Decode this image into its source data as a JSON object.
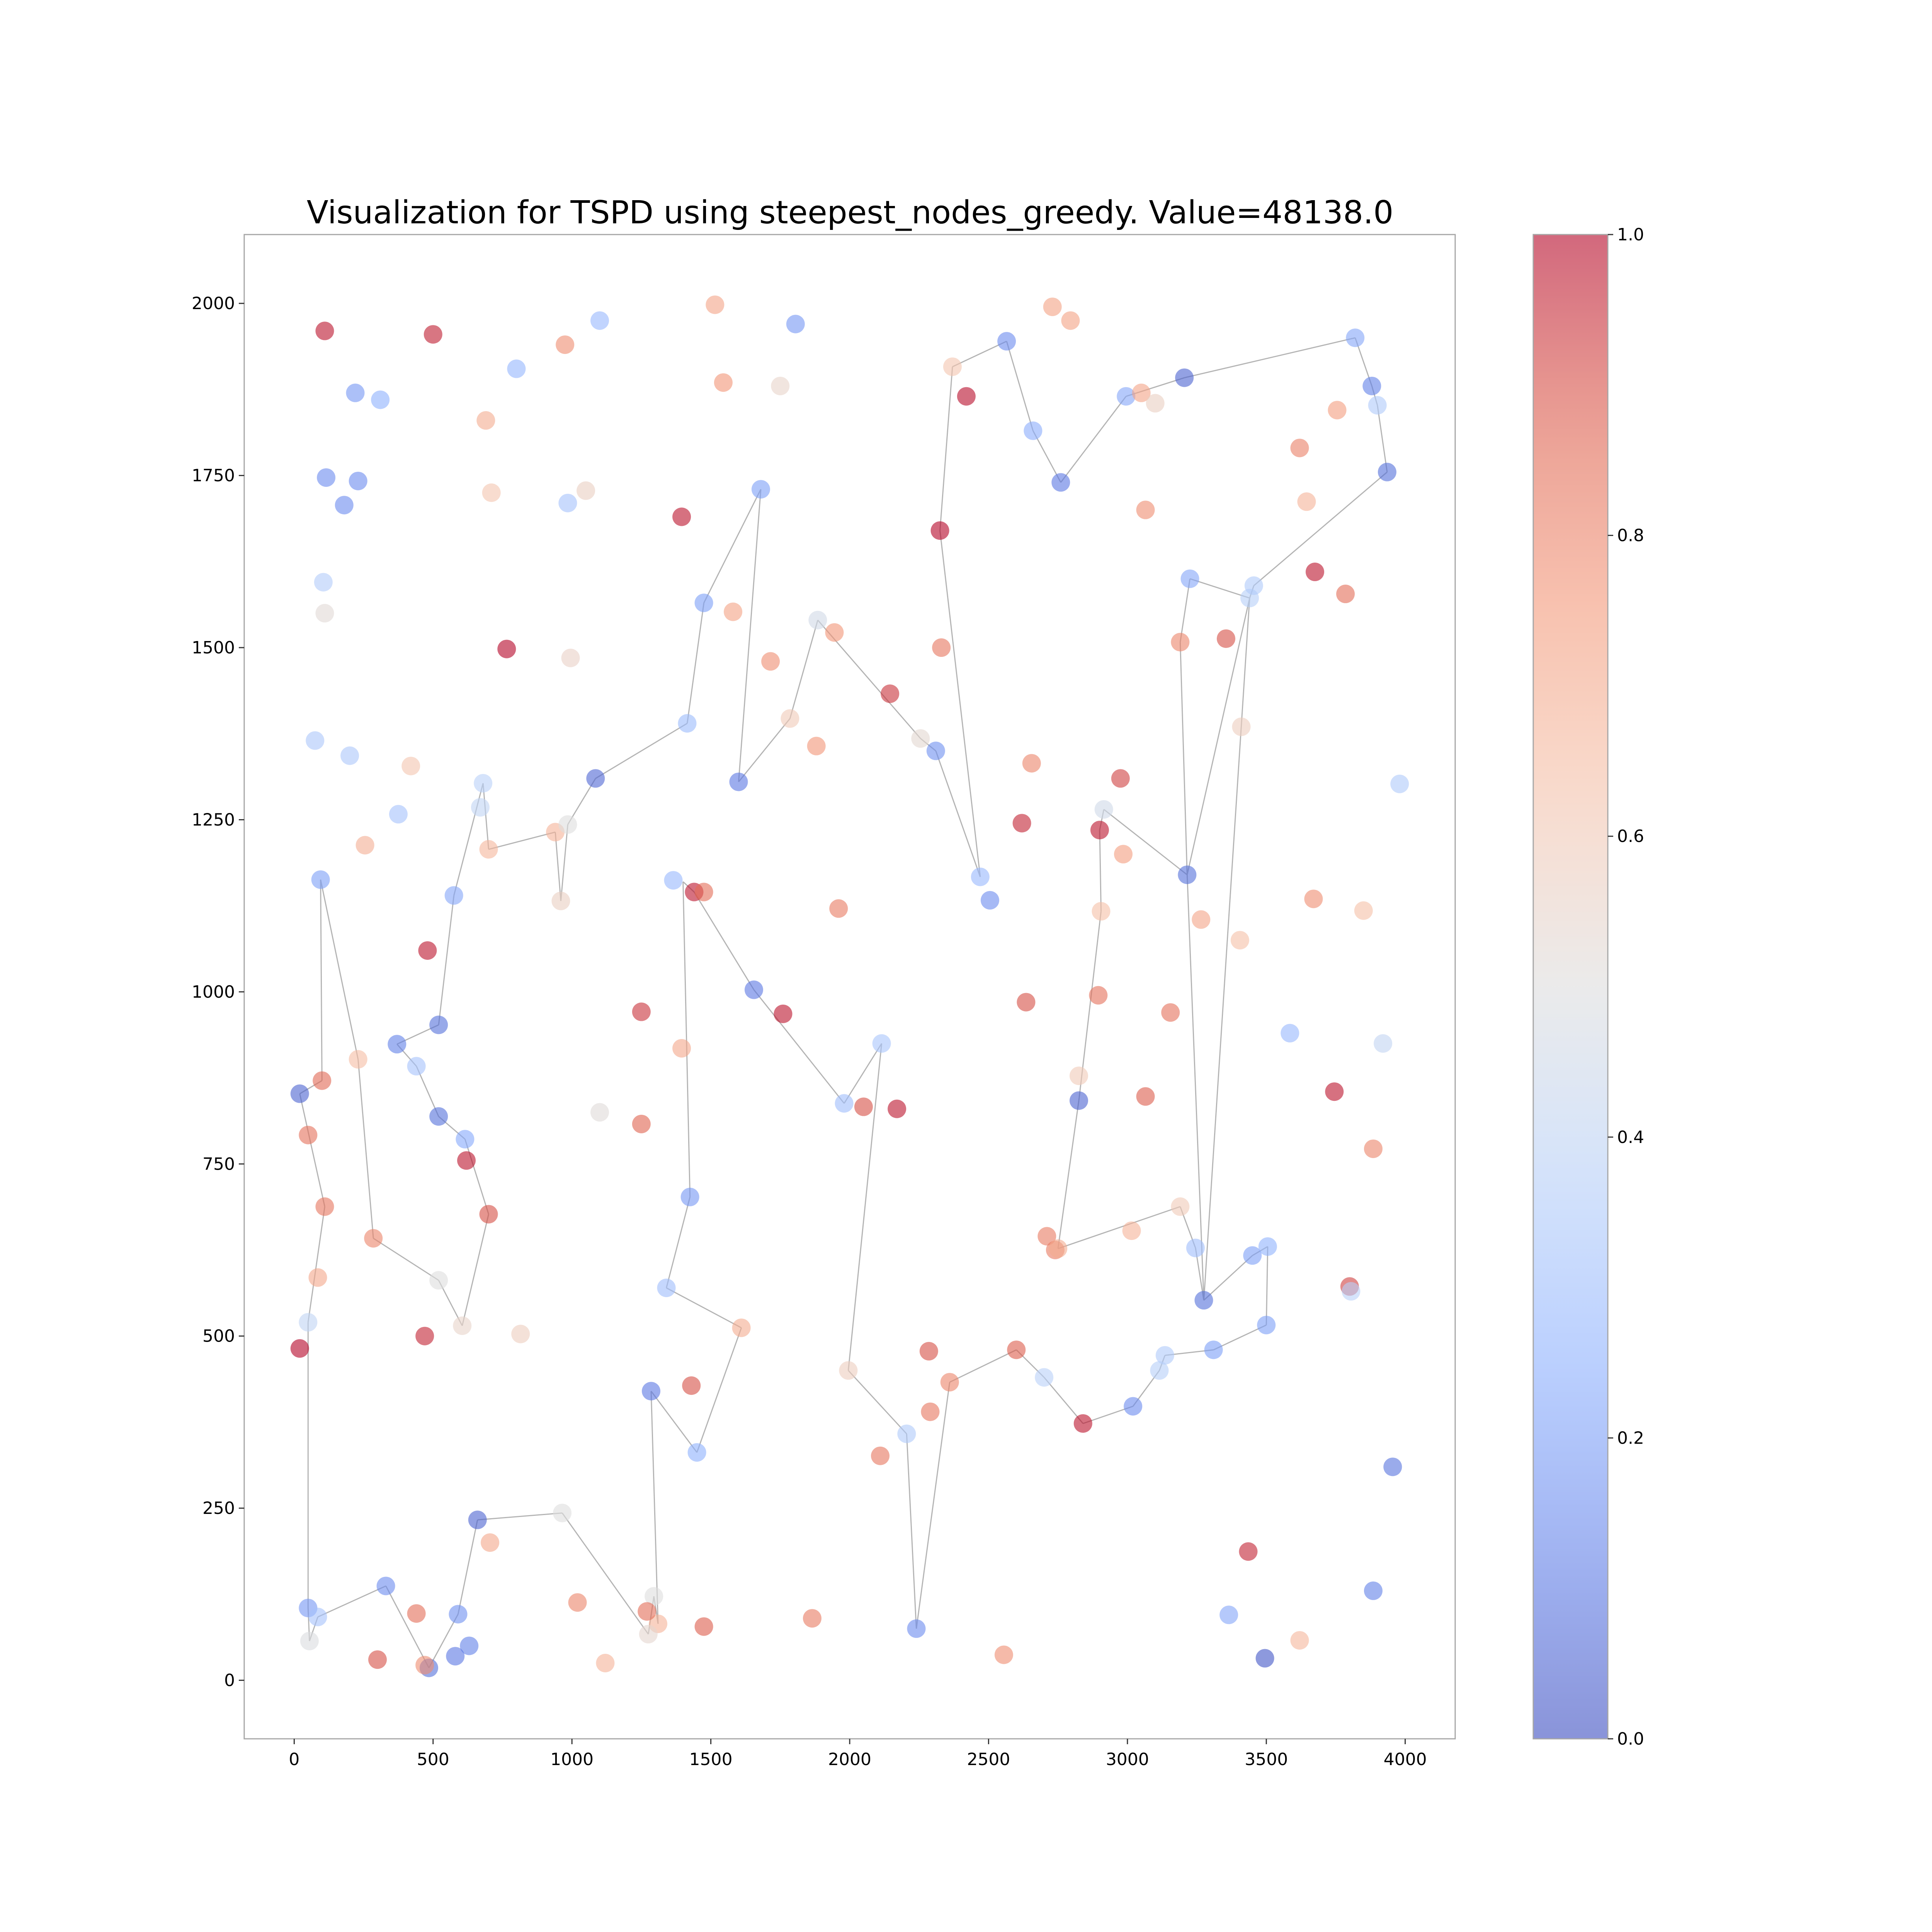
{
  "chart_data": {
    "type": "scatter",
    "title": "Visualization for TSPD using steepest_nodes_greedy. Value=48138.0",
    "xlabel": "",
    "ylabel": "",
    "xlim": [
      -180,
      4180
    ],
    "ylim": [
      -85,
      2100
    ],
    "xticks": [
      0,
      500,
      1000,
      1500,
      2000,
      2500,
      3000,
      3500,
      4000
    ],
    "yticks": [
      0,
      250,
      500,
      750,
      1000,
      1250,
      1500,
      1750,
      2000
    ],
    "grid": false,
    "colormap": "coolwarm",
    "colorbar": {
      "range": [
        0.0,
        1.0
      ],
      "ticks": [
        0.0,
        0.2,
        0.4,
        0.6,
        0.8,
        1.0
      ],
      "tick_labels": [
        "0.0",
        "0.2",
        "0.4",
        "0.6",
        "0.8",
        "1.0"
      ]
    },
    "colors": {
      "edge": "#b4b4b4",
      "axes": "#a6a6a6"
    },
    "nodes": [
      [
        110,
        1960,
        0.98
      ],
      [
        500,
        1955,
        0.97
      ],
      [
        1515,
        1998,
        0.72
      ],
      [
        1100,
        1975,
        0.28
      ],
      [
        1805,
        1970,
        0.18
      ],
      [
        975,
        1940,
        0.78
      ],
      [
        800,
        1905,
        0.27
      ],
      [
        690,
        1830,
        0.7
      ],
      [
        220,
        1870,
        0.18
      ],
      [
        310,
        1860,
        0.25
      ],
      [
        1545,
        1885,
        0.76
      ],
      [
        1750,
        1880,
        0.55
      ],
      [
        115,
        1747,
        0.15
      ],
      [
        230,
        1742,
        0.15
      ],
      [
        180,
        1707,
        0.15
      ],
      [
        710,
        1725,
        0.62
      ],
      [
        985,
        1710,
        0.32
      ],
      [
        1050,
        1728,
        0.57
      ],
      [
        1395,
        1690,
        0.98
      ],
      [
        105,
        1595,
        0.36
      ],
      [
        110,
        1550,
        0.52
      ],
      [
        765,
        1498,
        1.0
      ],
      [
        995,
        1485,
        0.56
      ],
      [
        1580,
        1552,
        0.73
      ],
      [
        1715,
        1480,
        0.78
      ],
      [
        75,
        1365,
        0.34
      ],
      [
        200,
        1343,
        0.34
      ],
      [
        420,
        1328,
        0.62
      ],
      [
        375,
        1258,
        0.32
      ],
      [
        255,
        1213,
        0.69
      ],
      [
        680,
        1303,
        0.38
      ],
      [
        670,
        1268,
        0.4
      ],
      [
        700,
        1207,
        0.67
      ],
      [
        940,
        1232,
        0.68
      ],
      [
        985,
        1243,
        0.5
      ],
      [
        960,
        1132,
        0.57
      ],
      [
        95,
        1163,
        0.2
      ],
      [
        1880,
        1357,
        0.76
      ],
      [
        1785,
        1397,
        0.6
      ],
      [
        1885,
        1540,
        0.46
      ],
      [
        1945,
        1522,
        0.76
      ],
      [
        1960,
        1121,
        0.82
      ],
      [
        480,
        1060,
        0.98
      ],
      [
        575,
        1140,
        0.22
      ],
      [
        370,
        924,
        0.12
      ],
      [
        520,
        952,
        0.08
      ],
      [
        440,
        892,
        0.32
      ],
      [
        520,
        819,
        0.08
      ],
      [
        1250,
        971,
        0.94
      ],
      [
        1100,
        825,
        0.51
      ],
      [
        1250,
        808,
        0.87
      ],
      [
        1395,
        918,
        0.71
      ],
      [
        230,
        902,
        0.65
      ],
      [
        20,
        852,
        0.05
      ],
      [
        100,
        871,
        0.86
      ],
      [
        50,
        792,
        0.84
      ],
      [
        110,
        688,
        0.83
      ],
      [
        85,
        585,
        0.71
      ],
      [
        285,
        642,
        0.8
      ],
      [
        615,
        786,
        0.23
      ],
      [
        620,
        755,
        0.98
      ],
      [
        700,
        677,
        0.9
      ],
      [
        520,
        581,
        0.5
      ],
      [
        605,
        515,
        0.55
      ],
      [
        815,
        503,
        0.58
      ],
      [
        470,
        500,
        0.96
      ],
      [
        50,
        520,
        0.4
      ],
      [
        20,
        482,
        1.0
      ],
      [
        1365,
        1162,
        0.28
      ],
      [
        1440,
        1145,
        0.98
      ],
      [
        1475,
        1145,
        0.85
      ],
      [
        1655,
        1003,
        0.1
      ],
      [
        1760,
        968,
        0.98
      ],
      [
        1425,
        702,
        0.18
      ],
      [
        1340,
        570,
        0.3
      ],
      [
        1610,
        512,
        0.7
      ],
      [
        1285,
        420,
        0.1
      ],
      [
        1430,
        428,
        0.9
      ],
      [
        1450,
        331,
        0.25
      ],
      [
        1980,
        838,
        0.3
      ],
      [
        2050,
        833,
        0.9
      ],
      [
        2115,
        925,
        0.33
      ],
      [
        2170,
        830,
        0.98
      ],
      [
        1415,
        1390,
        0.29
      ],
      [
        1600,
        1305,
        0.1
      ],
      [
        1680,
        1730,
        0.2
      ],
      [
        1475,
        1565,
        0.2
      ],
      [
        1085,
        1310,
        0.06
      ],
      [
        2145,
        1433,
        0.94
      ],
      [
        2255,
        1368,
        0.53
      ],
      [
        2310,
        1350,
        0.16
      ],
      [
        2325,
        1670,
        1.0
      ],
      [
        2420,
        1865,
        0.99
      ],
      [
        2370,
        1908,
        0.62
      ],
      [
        2565,
        1945,
        0.15
      ],
      [
        2330,
        1500,
        0.83
      ],
      [
        2470,
        1167,
        0.28
      ],
      [
        2505,
        1133,
        0.15
      ],
      [
        2655,
        1332,
        0.8
      ],
      [
        2620,
        1245,
        0.96
      ],
      [
        2635,
        985,
        0.9
      ],
      [
        2660,
        1815,
        0.24
      ],
      [
        2760,
        1740,
        0.1
      ],
      [
        2730,
        1995,
        0.73
      ],
      [
        2795,
        1975,
        0.73
      ],
      [
        2995,
        1865,
        0.22
      ],
      [
        3050,
        1870,
        0.72
      ],
      [
        3100,
        1855,
        0.57
      ],
      [
        3205,
        1892,
        0.05
      ],
      [
        3065,
        1700,
        0.78
      ],
      [
        3225,
        1600,
        0.22
      ],
      [
        3440,
        1572,
        0.37
      ],
      [
        3455,
        1590,
        0.35
      ],
      [
        3190,
        1508,
        0.8
      ],
      [
        3355,
        1513,
        0.9
      ],
      [
        3410,
        1385,
        0.58
      ],
      [
        2975,
        1310,
        0.92
      ],
      [
        2900,
        1235,
        0.98
      ],
      [
        2915,
        1265,
        0.45
      ],
      [
        2985,
        1200,
        0.74
      ],
      [
        3215,
        1170,
        0.08
      ],
      [
        3265,
        1105,
        0.72
      ],
      [
        2905,
        1117,
        0.64
      ],
      [
        3405,
        1075,
        0.64
      ],
      [
        3155,
        970,
        0.84
      ],
      [
        2895,
        995,
        0.84
      ],
      [
        2825,
        878,
        0.6
      ],
      [
        2825,
        842,
        0.05
      ],
      [
        3065,
        848,
        0.88
      ],
      [
        3585,
        940,
        0.28
      ],
      [
        3920,
        925,
        0.41
      ],
      [
        3745,
        855,
        0.98
      ],
      [
        3885,
        772,
        0.8
      ],
      [
        3670,
        1135,
        0.78
      ],
      [
        3850,
        1118,
        0.64
      ],
      [
        3980,
        1302,
        0.35
      ],
      [
        3620,
        1790,
        0.81
      ],
      [
        3645,
        1712,
        0.68
      ],
      [
        3755,
        1845,
        0.74
      ],
      [
        3820,
        1950,
        0.22
      ],
      [
        3880,
        1880,
        0.12
      ],
      [
        3900,
        1852,
        0.35
      ],
      [
        3935,
        1755,
        0.08
      ],
      [
        3675,
        1610,
        0.98
      ],
      [
        3785,
        1578,
        0.85
      ],
      [
        3190,
        688,
        0.6
      ],
      [
        3245,
        628,
        0.3
      ],
      [
        3275,
        552,
        0.08
      ],
      [
        3450,
        617,
        0.2
      ],
      [
        3505,
        630,
        0.26
      ],
      [
        3500,
        516,
        0.2
      ],
      [
        3800,
        572,
        0.92
      ],
      [
        3805,
        565,
        0.38
      ],
      [
        3955,
        310,
        0.09
      ],
      [
        3310,
        480,
        0.2
      ],
      [
        3135,
        472,
        0.35
      ],
      [
        3115,
        450,
        0.37
      ],
      [
        3020,
        398,
        0.15
      ],
      [
        2710,
        645,
        0.82
      ],
      [
        2740,
        625,
        0.82
      ],
      [
        2750,
        627,
        0.7
      ],
      [
        3015,
        653,
        0.68
      ],
      [
        2840,
        373,
        0.98
      ],
      [
        2700,
        440,
        0.38
      ],
      [
        2600,
        480,
        0.88
      ],
      [
        2285,
        478,
        0.9
      ],
      [
        2360,
        433,
        0.8
      ],
      [
        2290,
        390,
        0.83
      ],
      [
        2110,
        326,
        0.83
      ],
      [
        1995,
        450,
        0.58
      ],
      [
        2205,
        358,
        0.35
      ],
      [
        2240,
        75,
        0.15
      ],
      [
        2555,
        37,
        0.78
      ],
      [
        3435,
        187,
        0.96
      ],
      [
        3365,
        95,
        0.22
      ],
      [
        3495,
        32,
        0.02
      ],
      [
        3620,
        58,
        0.67
      ],
      [
        3885,
        130,
        0.12
      ],
      [
        1865,
        90,
        0.82
      ],
      [
        1475,
        78,
        0.88
      ],
      [
        1295,
        122,
        0.5
      ],
      [
        1310,
        82,
        0.68
      ],
      [
        1270,
        100,
        0.85
      ],
      [
        1275,
        67,
        0.54
      ],
      [
        1120,
        25,
        0.68
      ],
      [
        1020,
        113,
        0.8
      ],
      [
        965,
        243,
        0.5
      ],
      [
        705,
        200,
        0.71
      ],
      [
        660,
        233,
        0.05
      ],
      [
        590,
        96,
        0.16
      ],
      [
        630,
        50,
        0.12
      ],
      [
        580,
        35,
        0.1
      ],
      [
        485,
        18,
        0.08
      ],
      [
        470,
        22,
        0.78
      ],
      [
        440,
        97,
        0.85
      ],
      [
        300,
        30,
        0.9
      ],
      [
        330,
        137,
        0.15
      ],
      [
        50,
        105,
        0.18
      ],
      [
        85,
        92,
        0.32
      ],
      [
        55,
        57,
        0.49
      ]
    ],
    "tour": [
      [
        55,
        57
      ],
      [
        85,
        92
      ],
      [
        330,
        137
      ],
      [
        485,
        18
      ],
      [
        590,
        96
      ],
      [
        660,
        233
      ],
      [
        965,
        243
      ],
      [
        1275,
        67
      ],
      [
        1295,
        122
      ],
      [
        1310,
        82
      ],
      [
        1285,
        420
      ],
      [
        1450,
        331
      ],
      [
        1610,
        512
      ],
      [
        1340,
        570
      ],
      [
        1425,
        702
      ],
      [
        1400,
        1160
      ],
      [
        1440,
        1145
      ],
      [
        1655,
        1003
      ],
      [
        1980,
        838
      ],
      [
        2115,
        925
      ],
      [
        1995,
        450
      ],
      [
        2205,
        358
      ],
      [
        2240,
        75
      ],
      [
        2360,
        433
      ],
      [
        2600,
        480
      ],
      [
        2700,
        440
      ],
      [
        2840,
        373
      ],
      [
        3020,
        398
      ],
      [
        3115,
        450
      ],
      [
        3135,
        472
      ],
      [
        3310,
        480
      ],
      [
        3500,
        516
      ],
      [
        3505,
        630
      ],
      [
        3450,
        617
      ],
      [
        3275,
        552
      ],
      [
        3245,
        628
      ],
      [
        3190,
        688
      ],
      [
        2750,
        627
      ],
      [
        2825,
        842
      ],
      [
        2905,
        1117
      ],
      [
        2900,
        1235
      ],
      [
        2915,
        1265
      ],
      [
        3215,
        1170
      ],
      [
        3440,
        1572
      ],
      [
        3225,
        1600
      ],
      [
        3190,
        1508
      ],
      [
        3215,
        1170
      ],
      [
        3275,
        552
      ],
      [
        3440,
        1572
      ],
      [
        3455,
        1590
      ],
      [
        3935,
        1755
      ],
      [
        3900,
        1852
      ],
      [
        3880,
        1880
      ],
      [
        3820,
        1950
      ],
      [
        3205,
        1892
      ],
      [
        2995,
        1865
      ],
      [
        2760,
        1740
      ],
      [
        2660,
        1815
      ],
      [
        2565,
        1945
      ],
      [
        2370,
        1908
      ],
      [
        2325,
        1670
      ],
      [
        2470,
        1167
      ],
      [
        2310,
        1350
      ],
      [
        2255,
        1368
      ],
      [
        1885,
        1540
      ],
      [
        1785,
        1397
      ],
      [
        1600,
        1305
      ],
      [
        1680,
        1730
      ],
      [
        1475,
        1565
      ],
      [
        1415,
        1390
      ],
      [
        1085,
        1310
      ],
      [
        985,
        1243
      ],
      [
        960,
        1132
      ],
      [
        940,
        1232
      ],
      [
        700,
        1207
      ],
      [
        680,
        1303
      ],
      [
        575,
        1140
      ],
      [
        520,
        952
      ],
      [
        370,
        924
      ],
      [
        440,
        892
      ],
      [
        520,
        819
      ],
      [
        615,
        786
      ],
      [
        700,
        677
      ],
      [
        605,
        515
      ],
      [
        520,
        581
      ],
      [
        285,
        642
      ],
      [
        230,
        902
      ],
      [
        95,
        1163
      ],
      [
        100,
        871
      ],
      [
        20,
        852
      ],
      [
        110,
        688
      ],
      [
        50,
        520
      ],
      [
        50,
        105
      ],
      [
        55,
        57
      ]
    ]
  }
}
